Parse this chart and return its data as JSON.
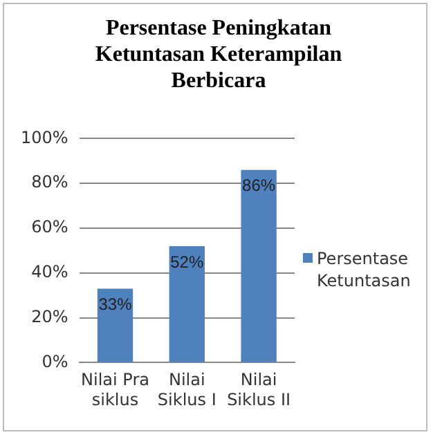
{
  "chart_data": {
    "type": "bar",
    "title": "Persentase Peningkatan Ketuntasan Keterampilan Berbicara",
    "categories": [
      "Nilai Pra siklus",
      "Nilai Siklus I",
      "Nilai Siklus II"
    ],
    "series": [
      {
        "name": "Persentase Ketuntasan",
        "color": "#4f81bd",
        "values": [
          33,
          52,
          86
        ],
        "value_labels": [
          "33%",
          "52%",
          "86%"
        ]
      }
    ],
    "ylim": [
      0,
      100
    ],
    "yticks": [
      {
        "value": 0,
        "label": "0%"
      },
      {
        "value": 20,
        "label": "20%"
      },
      {
        "value": 40,
        "label": "40%"
      },
      {
        "value": 60,
        "label": "60%"
      },
      {
        "value": 80,
        "label": "80%"
      },
      {
        "value": 100,
        "label": "100%"
      }
    ],
    "grid": "y",
    "legend": "right"
  }
}
